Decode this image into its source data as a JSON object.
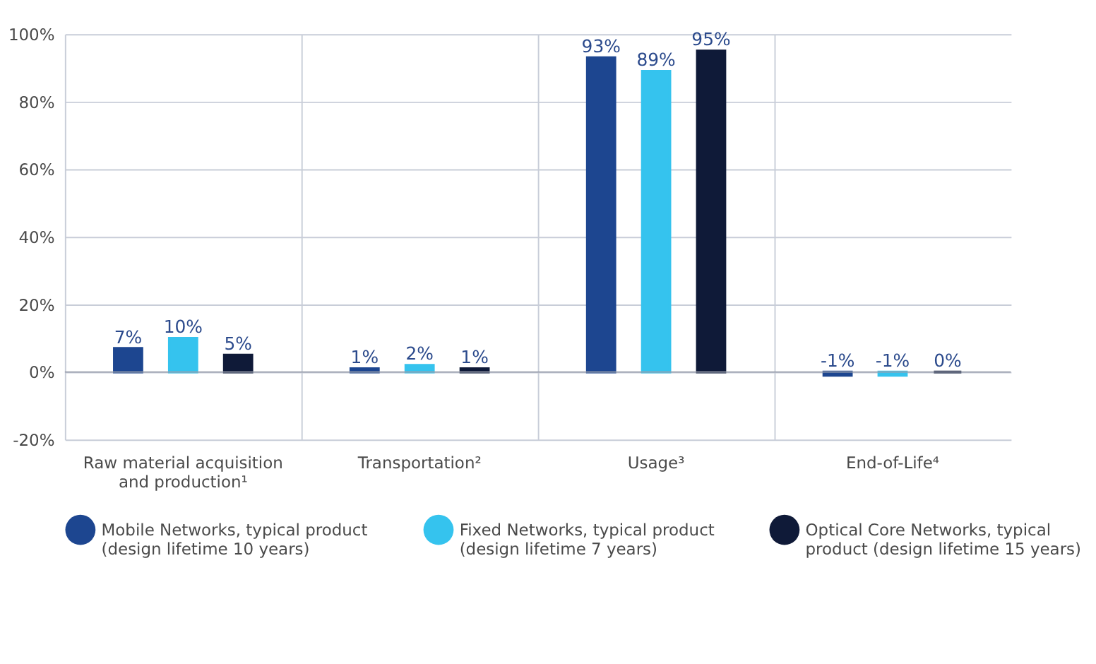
{
  "chart_data": {
    "type": "bar",
    "categories": [
      "Raw material acquisition and production¹",
      "Transportation²",
      "Usage³",
      "End-of-Life⁴"
    ],
    "series": [
      {
        "name": "Mobile Networks, typical product (design lifetime 10 years)",
        "color": "#1d4690",
        "values": [
          7,
          1,
          93,
          -1
        ],
        "value_labels": [
          "7%",
          "1%",
          "93%",
          "-1%"
        ]
      },
      {
        "name": "Fixed Networks, typical product (design lifetime 7 years)",
        "color": "#35c3ee",
        "values": [
          10,
          2,
          89,
          -1
        ],
        "value_labels": [
          "10%",
          "2%",
          "89%",
          "-1%"
        ]
      },
      {
        "name": "Optical Core Networks, typical product (design lifetime 15 years)",
        "color": "#0f1a38",
        "values": [
          5,
          1,
          95,
          0
        ],
        "value_labels": [
          "5%",
          "1%",
          "95%",
          "0%"
        ]
      }
    ],
    "ylim": [
      -20,
      100
    ],
    "yticks": [
      {
        "value": -20,
        "label": "-20%"
      },
      {
        "value": 0,
        "label": "0%"
      },
      {
        "value": 20,
        "label": "20%"
      },
      {
        "value": 40,
        "label": "40%"
      },
      {
        "value": 60,
        "label": "60%"
      },
      {
        "value": 80,
        "label": "80%"
      },
      {
        "value": 100,
        "label": "100%"
      }
    ],
    "grid": true,
    "legend": "bottom"
  }
}
